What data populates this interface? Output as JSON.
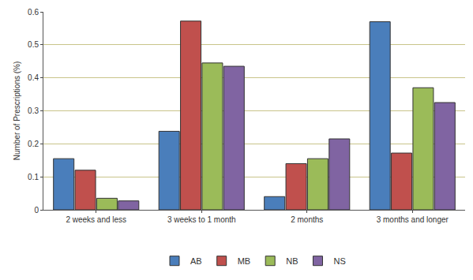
{
  "chart_data": {
    "type": "bar",
    "y_label": "Number of Prescriptions (%)",
    "categories": [
      "2 weeks and less",
      "3 weeks to 1 month",
      "2 months",
      "3 months and longer"
    ],
    "series": [
      {
        "name": "AB",
        "color": "#4a7ebb",
        "values": [
          0.155,
          0.238,
          0.04,
          0.57
        ]
      },
      {
        "name": "MB",
        "color": "#c0504d",
        "values": [
          0.12,
          0.572,
          0.14,
          0.172
        ]
      },
      {
        "name": "NB",
        "color": "#9bbb59",
        "values": [
          0.035,
          0.445,
          0.155,
          0.37
        ]
      },
      {
        "name": "NS",
        "color": "#8064a2",
        "values": [
          0.027,
          0.435,
          0.215,
          0.325
        ]
      }
    ],
    "ylim": [
      0,
      0.6
    ],
    "yticks": [
      0,
      0.1,
      0.2,
      0.3,
      0.4,
      0.5,
      0.6
    ],
    "grid": true,
    "legend": "bottom"
  }
}
